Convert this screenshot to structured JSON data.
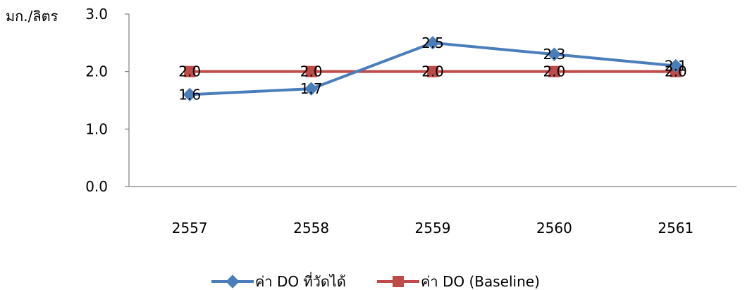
{
  "chart_data": {
    "type": "line",
    "ylabel": "มก./ลิตร",
    "xlabel": "",
    "categories": [
      "2557",
      "2558",
      "2559",
      "2560",
      "2561"
    ],
    "ylim": [
      0,
      3
    ],
    "yticks": [
      "0.0",
      "1.0",
      "2.0",
      "3.0"
    ],
    "grid": false,
    "legend_position": "bottom",
    "series": [
      {
        "name": "ค่า DO ที่วัดได้",
        "values": [
          1.6,
          1.7,
          2.5,
          2.3,
          2.1
        ],
        "labels": [
          "1.6",
          "1.7",
          "2.5",
          "2.3",
          "2.1"
        ],
        "color": "#4a7ebb",
        "marker": "diamond"
      },
      {
        "name": "ค่า DO (Baseline)",
        "values": [
          2.0,
          2.0,
          2.0,
          2.0,
          2.0
        ],
        "labels": [
          "2.0",
          "2.0",
          "2.0",
          "2.0",
          "2.0"
        ],
        "color": "#be4b48",
        "marker": "square"
      }
    ]
  }
}
